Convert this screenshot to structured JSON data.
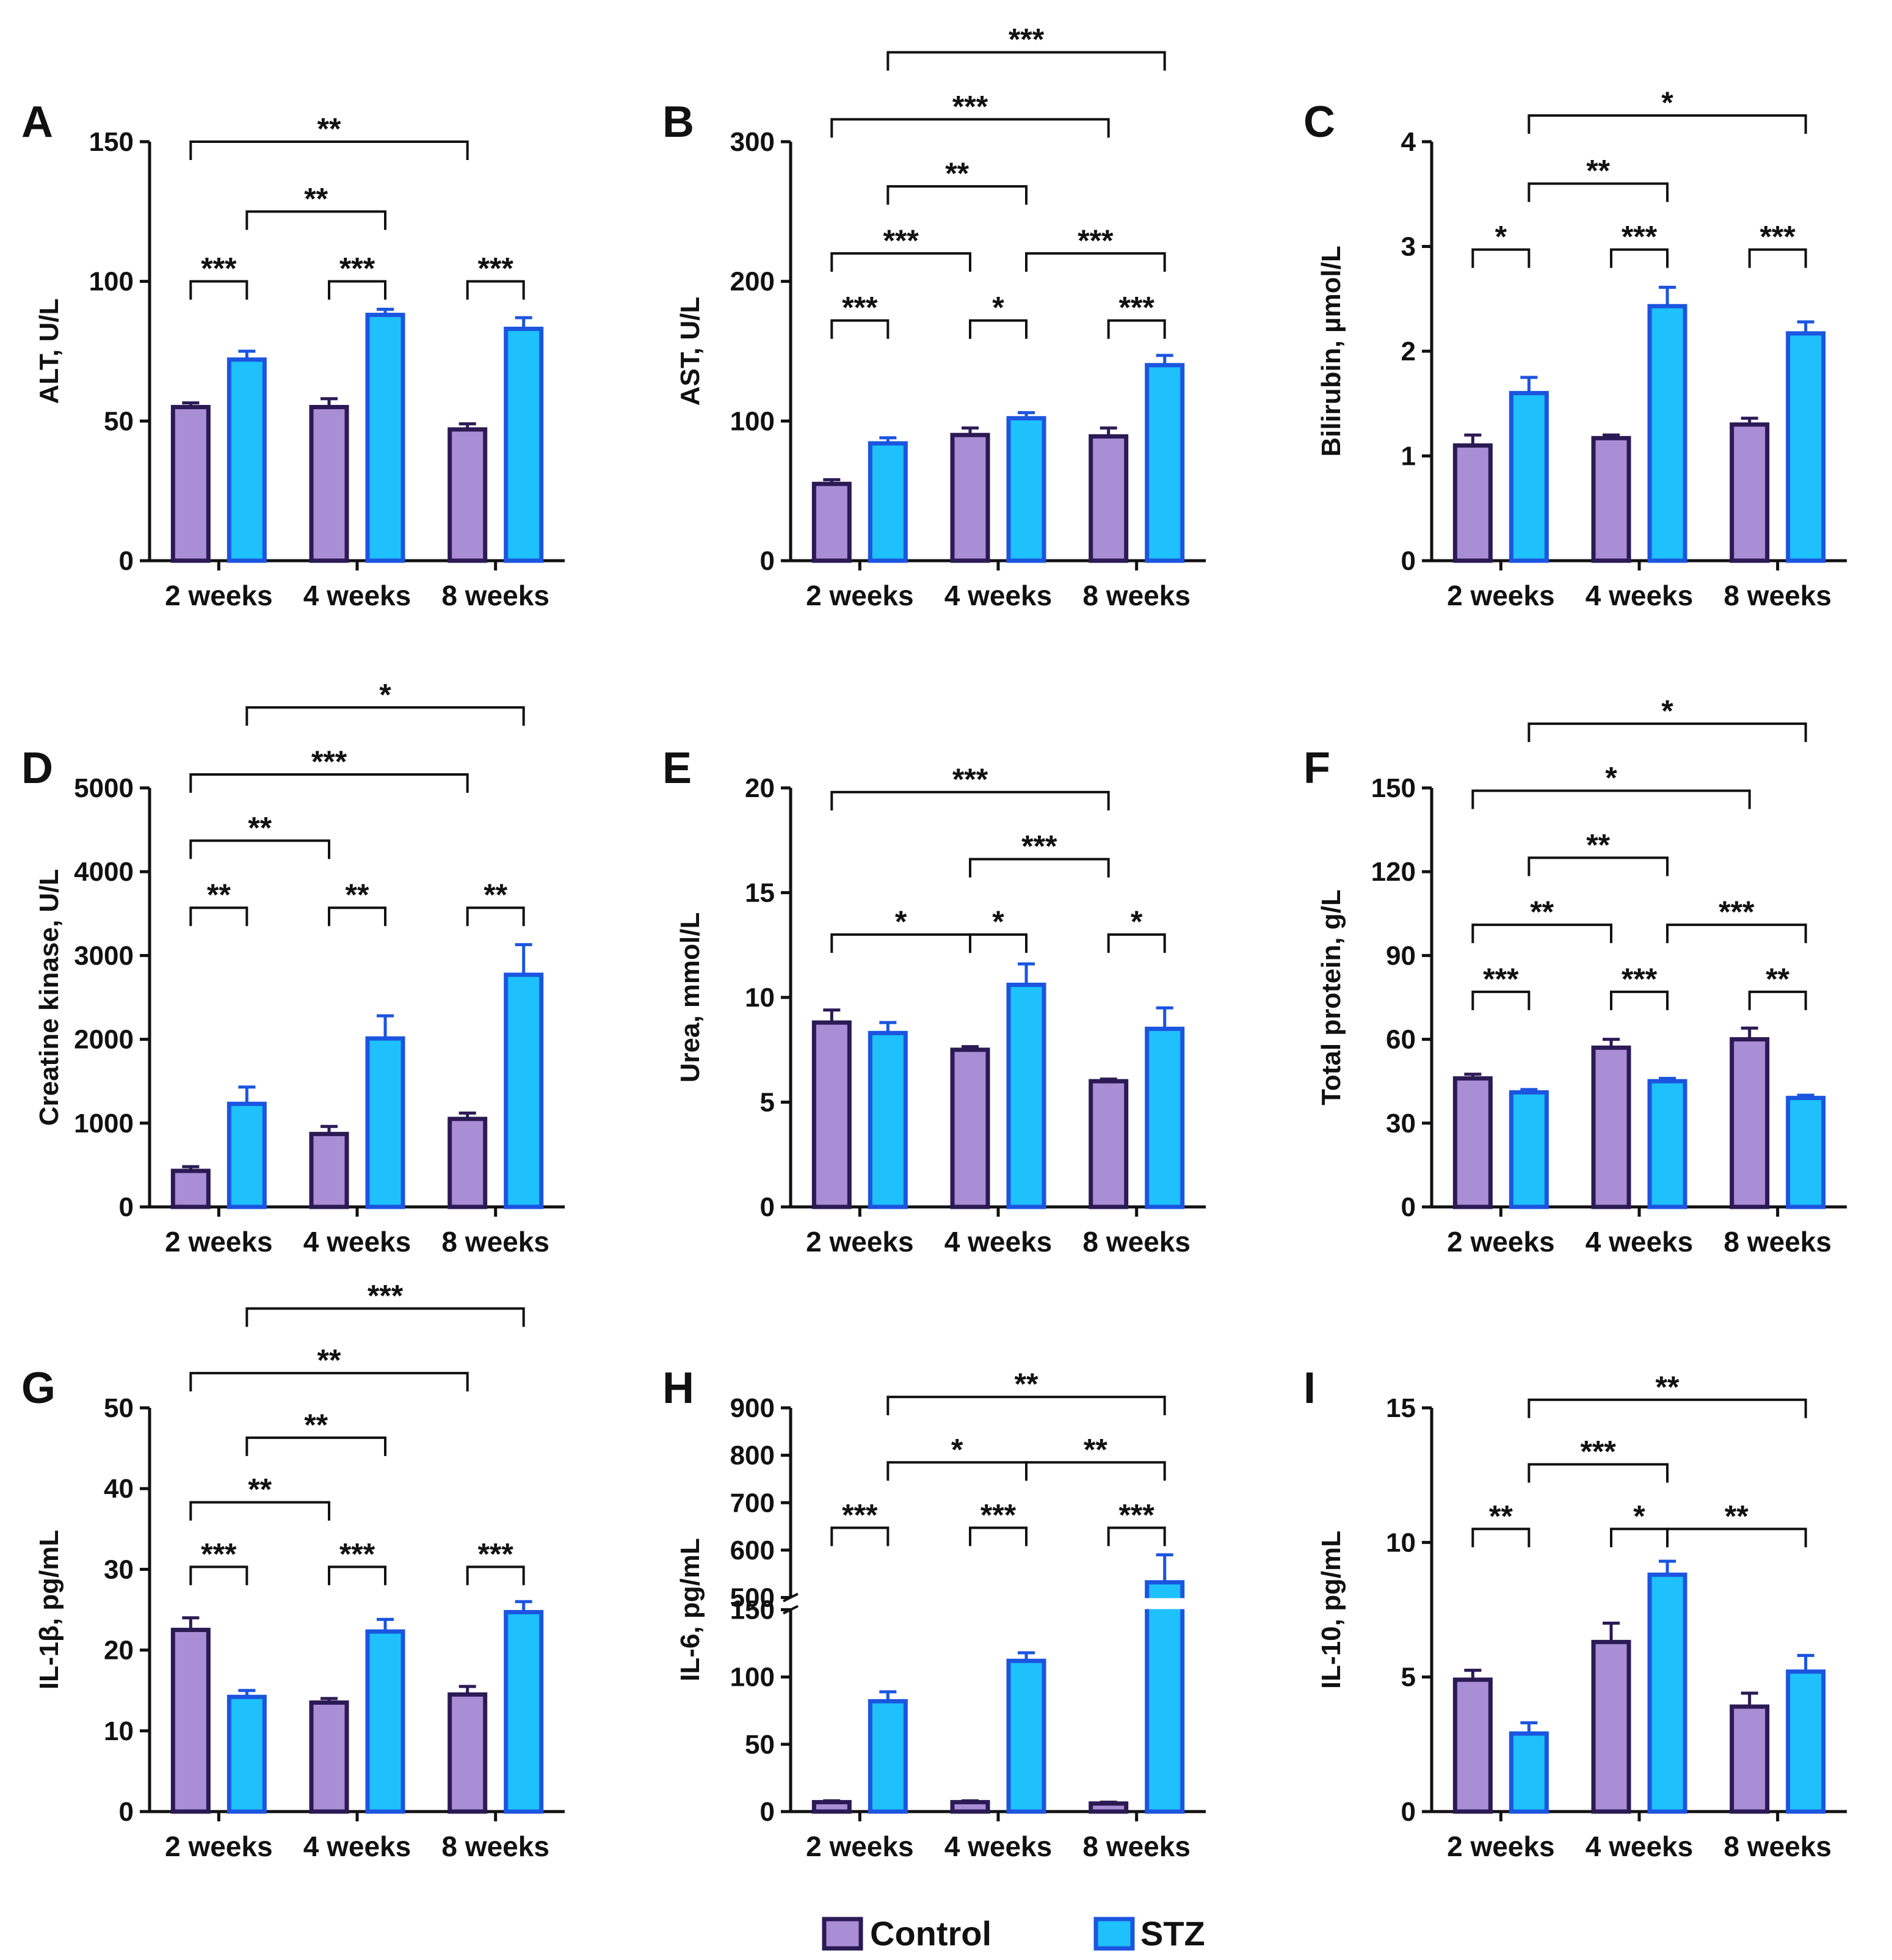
{
  "colors": {
    "control_fill": "#a98ed6",
    "control_edge": "#2c1a54",
    "stz_fill": "#1ec1fb",
    "stz_edge": "#1b55e0",
    "ink": "#111111"
  },
  "legend": {
    "items": [
      {
        "label": "Control",
        "series": "control"
      },
      {
        "label": "STZ",
        "series": "stz"
      }
    ]
  },
  "chart_data": [
    {
      "panel": "A",
      "type": "bar",
      "ylabel": "ALT, U/L",
      "categories": [
        "2 weeks",
        "4 weeks",
        "8 weeks"
      ],
      "ylim": [
        0,
        150
      ],
      "yticks": [
        0,
        50,
        100,
        150
      ],
      "series": [
        {
          "name": "Control",
          "values": [
            55,
            55,
            47
          ],
          "errors": [
            1.5,
            3,
            2
          ]
        },
        {
          "name": "STZ",
          "values": [
            72,
            88,
            83
          ],
          "errors": [
            3,
            2,
            4
          ]
        }
      ],
      "significance": [
        {
          "label": "***",
          "from": [
            0,
            0
          ],
          "to": [
            0,
            1
          ],
          "y": 100
        },
        {
          "label": "***",
          "from": [
            1,
            0
          ],
          "to": [
            1,
            1
          ],
          "y": 100
        },
        {
          "label": "***",
          "from": [
            2,
            0
          ],
          "to": [
            2,
            1
          ],
          "y": 100
        },
        {
          "label": "**",
          "from": [
            0,
            1
          ],
          "to": [
            1,
            1
          ],
          "y": 125
        },
        {
          "label": "**",
          "from": [
            0,
            0
          ],
          "to": [
            2,
            0
          ],
          "y": 150
        }
      ]
    },
    {
      "panel": "B",
      "type": "bar",
      "ylabel": "AST, U/L",
      "categories": [
        "2 weeks",
        "4 weeks",
        "8 weeks"
      ],
      "ylim": [
        0,
        300
      ],
      "yticks": [
        0,
        100,
        200,
        300
      ],
      "series": [
        {
          "name": "Control",
          "values": [
            55,
            90,
            89
          ],
          "errors": [
            3,
            5,
            6
          ]
        },
        {
          "name": "STZ",
          "values": [
            84,
            102,
            140
          ],
          "errors": [
            4,
            4,
            7
          ]
        }
      ],
      "significance": [
        {
          "label": "***",
          "from": [
            0,
            0
          ],
          "to": [
            0,
            1
          ],
          "y": 172
        },
        {
          "label": "*",
          "from": [
            1,
            0
          ],
          "to": [
            1,
            1
          ],
          "y": 172
        },
        {
          "label": "***",
          "from": [
            2,
            0
          ],
          "to": [
            2,
            1
          ],
          "y": 172
        },
        {
          "label": "***",
          "from": [
            0,
            0
          ],
          "to": [
            1,
            0
          ],
          "y": 220
        },
        {
          "label": "***",
          "from": [
            1,
            1
          ],
          "to": [
            2,
            1
          ],
          "y": 220
        },
        {
          "label": "**",
          "from": [
            0,
            1
          ],
          "to": [
            1,
            1
          ],
          "y": 268
        },
        {
          "label": "***",
          "from": [
            0,
            0
          ],
          "to": [
            2,
            0
          ],
          "y": 316
        },
        {
          "label": "***",
          "from": [
            0,
            1
          ],
          "to": [
            2,
            1
          ],
          "y": 364
        }
      ]
    },
    {
      "panel": "C",
      "type": "bar",
      "ylabel": "Bilirubin, µmol/L",
      "categories": [
        "2 weeks",
        "4 weeks",
        "8 weeks"
      ],
      "ylim": [
        0,
        4
      ],
      "yticks": [
        0,
        1,
        2,
        3,
        4
      ],
      "series": [
        {
          "name": "Control",
          "values": [
            1.1,
            1.17,
            1.3
          ],
          "errors": [
            0.1,
            0.03,
            0.06
          ]
        },
        {
          "name": "STZ",
          "values": [
            1.6,
            2.43,
            2.17
          ],
          "errors": [
            0.15,
            0.18,
            0.11
          ]
        }
      ],
      "significance": [
        {
          "label": "*",
          "from": [
            0,
            0
          ],
          "to": [
            0,
            1
          ],
          "y": 2.97
        },
        {
          "label": "***",
          "from": [
            1,
            0
          ],
          "to": [
            1,
            1
          ],
          "y": 2.97
        },
        {
          "label": "***",
          "from": [
            2,
            0
          ],
          "to": [
            2,
            1
          ],
          "y": 2.97
        },
        {
          "label": "**",
          "from": [
            0,
            1
          ],
          "to": [
            1,
            1
          ],
          "y": 3.6
        },
        {
          "label": "*",
          "from": [
            0,
            1
          ],
          "to": [
            2,
            1
          ],
          "y": 4.25
        }
      ]
    },
    {
      "panel": "D",
      "type": "bar",
      "ylabel": "Creatine kinase, U/L",
      "categories": [
        "2 weeks",
        "4 weeks",
        "8 weeks"
      ],
      "ylim": [
        0,
        5000
      ],
      "yticks": [
        0,
        1000,
        2000,
        3000,
        4000,
        5000
      ],
      "series": [
        {
          "name": "Control",
          "values": [
            430,
            870,
            1050
          ],
          "errors": [
            50,
            90,
            70
          ]
        },
        {
          "name": "STZ",
          "values": [
            1230,
            2010,
            2770
          ],
          "errors": [
            200,
            270,
            360
          ]
        }
      ],
      "significance": [
        {
          "label": "**",
          "from": [
            0,
            0
          ],
          "to": [
            0,
            1
          ],
          "y": 3570
        },
        {
          "label": "**",
          "from": [
            1,
            0
          ],
          "to": [
            1,
            1
          ],
          "y": 3570
        },
        {
          "label": "**",
          "from": [
            2,
            0
          ],
          "to": [
            2,
            1
          ],
          "y": 3570
        },
        {
          "label": "**",
          "from": [
            0,
            0
          ],
          "to": [
            1,
            0
          ],
          "y": 4370
        },
        {
          "label": "***",
          "from": [
            0,
            0
          ],
          "to": [
            2,
            0
          ],
          "y": 5160
        },
        {
          "label": "*",
          "from": [
            0,
            1
          ],
          "to": [
            2,
            1
          ],
          "y": 5960
        }
      ]
    },
    {
      "panel": "E",
      "type": "bar",
      "ylabel": "Urea, mmol/L",
      "categories": [
        "2 weeks",
        "4 weeks",
        "8 weeks"
      ],
      "ylim": [
        0,
        20
      ],
      "yticks": [
        0,
        5,
        10,
        15,
        20
      ],
      "series": [
        {
          "name": "Control",
          "values": [
            8.8,
            7.5,
            6.0
          ],
          "errors": [
            0.6,
            0.15,
            0.1
          ]
        },
        {
          "name": "STZ",
          "values": [
            8.3,
            10.6,
            8.5
          ],
          "errors": [
            0.5,
            1.0,
            1.0
          ]
        }
      ],
      "significance": [
        {
          "label": "*",
          "from": [
            0,
            0
          ],
          "to": [
            1,
            0
          ],
          "y": 13.0
        },
        {
          "label": "*",
          "from": [
            1,
            0
          ],
          "to": [
            1,
            1
          ],
          "y": 13.0
        },
        {
          "label": "*",
          "from": [
            2,
            0
          ],
          "to": [
            2,
            1
          ],
          "y": 13.0
        },
        {
          "label": "***",
          "from": [
            1,
            0
          ],
          "to": [
            2,
            0
          ],
          "y": 16.6
        },
        {
          "label": "***",
          "from": [
            0,
            0
          ],
          "to": [
            2,
            0
          ],
          "y": 19.8
        }
      ]
    },
    {
      "panel": "F",
      "type": "bar",
      "ylabel": "Total protein, g/L",
      "categories": [
        "2 weeks",
        "4 weeks",
        "8 weeks"
      ],
      "ylim": [
        0,
        150
      ],
      "yticks": [
        0,
        30,
        60,
        90,
        120,
        150
      ],
      "series": [
        {
          "name": "Control",
          "values": [
            46,
            57,
            60
          ],
          "errors": [
            1.5,
            3,
            4
          ]
        },
        {
          "name": "STZ",
          "values": [
            41,
            45,
            39
          ],
          "errors": [
            1,
            1,
            1
          ]
        }
      ],
      "significance": [
        {
          "label": "***",
          "from": [
            0,
            0
          ],
          "to": [
            0,
            1
          ],
          "y": 77
        },
        {
          "label": "***",
          "from": [
            1,
            0
          ],
          "to": [
            1,
            1
          ],
          "y": 77
        },
        {
          "label": "**",
          "from": [
            2,
            0
          ],
          "to": [
            2,
            1
          ],
          "y": 77
        },
        {
          "label": "**",
          "from": [
            0,
            0
          ],
          "to": [
            1,
            0
          ],
          "y": 101
        },
        {
          "label": "***",
          "from": [
            1,
            1
          ],
          "to": [
            2,
            1
          ],
          "y": 101
        },
        {
          "label": "**",
          "from": [
            0,
            1
          ],
          "to": [
            1,
            1
          ],
          "y": 125
        },
        {
          "label": "*",
          "from": [
            0,
            0
          ],
          "to": [
            2,
            0
          ],
          "y": 149
        },
        {
          "label": "*",
          "from": [
            0,
            1
          ],
          "to": [
            2,
            1
          ],
          "y": 173
        }
      ]
    },
    {
      "panel": "G",
      "type": "bar",
      "ylabel": "IL-1β, pg/mL",
      "categories": [
        "2 weeks",
        "4 weeks",
        "8 weeks"
      ],
      "ylim": [
        0,
        50
      ],
      "yticks": [
        0,
        10,
        20,
        30,
        40,
        50
      ],
      "series": [
        {
          "name": "Control",
          "values": [
            22.5,
            13.5,
            14.5
          ],
          "errors": [
            1.5,
            0.5,
            1
          ]
        },
        {
          "name": "STZ",
          "values": [
            14.2,
            22.3,
            24.7
          ],
          "errors": [
            0.8,
            1.5,
            1.3
          ]
        }
      ],
      "significance": [
        {
          "label": "***",
          "from": [
            0,
            0
          ],
          "to": [
            0,
            1
          ],
          "y": 30.3
        },
        {
          "label": "***",
          "from": [
            1,
            0
          ],
          "to": [
            1,
            1
          ],
          "y": 30.3
        },
        {
          "label": "***",
          "from": [
            2,
            0
          ],
          "to": [
            2,
            1
          ],
          "y": 30.3
        },
        {
          "label": "**",
          "from": [
            0,
            0
          ],
          "to": [
            1,
            0
          ],
          "y": 38.3
        },
        {
          "label": "**",
          "from": [
            0,
            1
          ],
          "to": [
            1,
            1
          ],
          "y": 46.3
        },
        {
          "label": "**",
          "from": [
            0,
            0
          ],
          "to": [
            2,
            0
          ],
          "y": 54.3
        },
        {
          "label": "***",
          "from": [
            0,
            1
          ],
          "to": [
            2,
            1
          ],
          "y": 62.3
        }
      ]
    },
    {
      "panel": "H",
      "type": "bar",
      "ylabel": "IL-6, pg/mL",
      "categories": [
        "2 weeks",
        "4 weeks",
        "8 weeks"
      ],
      "ylim": [
        0,
        900
      ],
      "axis_break": [
        150,
        500
      ],
      "yticks": [
        0,
        50,
        100,
        150,
        500,
        600,
        700,
        800,
        900
      ],
      "series": [
        {
          "name": "Control",
          "values": [
            7,
            7,
            6
          ],
          "errors": [
            1,
            1,
            1
          ]
        },
        {
          "name": "STZ",
          "values": [
            82,
            112,
            532
          ],
          "errors": [
            7,
            6,
            58
          ]
        }
      ],
      "significance": [
        {
          "label": "***",
          "from": [
            0,
            0
          ],
          "to": [
            0,
            1
          ],
          "y": 647
        },
        {
          "label": "***",
          "from": [
            1,
            0
          ],
          "to": [
            1,
            1
          ],
          "y": 647
        },
        {
          "label": "***",
          "from": [
            2,
            0
          ],
          "to": [
            2,
            1
          ],
          "y": 647
        },
        {
          "label": "*",
          "from": [
            0,
            1
          ],
          "to": [
            1,
            1
          ],
          "y": 785
        },
        {
          "label": "**",
          "from": [
            1,
            1
          ],
          "to": [
            2,
            1
          ],
          "y": 785
        },
        {
          "label": "**",
          "from": [
            0,
            1
          ],
          "to": [
            2,
            1
          ],
          "y": 923
        }
      ]
    },
    {
      "panel": "I",
      "type": "bar",
      "ylabel": "IL-10, pg/mL",
      "categories": [
        "2 weeks",
        "4 weeks",
        "8 weeks"
      ],
      "ylim": [
        0,
        15
      ],
      "yticks": [
        0,
        5,
        10,
        15
      ],
      "series": [
        {
          "name": "Control",
          "values": [
            4.9,
            6.3,
            3.9
          ],
          "errors": [
            0.35,
            0.7,
            0.5
          ]
        },
        {
          "name": "STZ",
          "values": [
            2.9,
            8.8,
            5.2
          ],
          "errors": [
            0.4,
            0.5,
            0.6
          ]
        }
      ],
      "significance": [
        {
          "label": "**",
          "from": [
            0,
            0
          ],
          "to": [
            0,
            1
          ],
          "y": 10.5
        },
        {
          "label": "*",
          "from": [
            1,
            0
          ],
          "to": [
            1,
            1
          ],
          "y": 10.5
        },
        {
          "label": "**",
          "from": [
            1,
            1
          ],
          "to": [
            2,
            1
          ],
          "y": 10.5
        },
        {
          "label": "***",
          "from": [
            0,
            1
          ],
          "to": [
            1,
            1
          ],
          "y": 12.9
        },
        {
          "label": "**",
          "from": [
            0,
            1
          ],
          "to": [
            2,
            1
          ],
          "y": 15.3
        }
      ]
    }
  ]
}
